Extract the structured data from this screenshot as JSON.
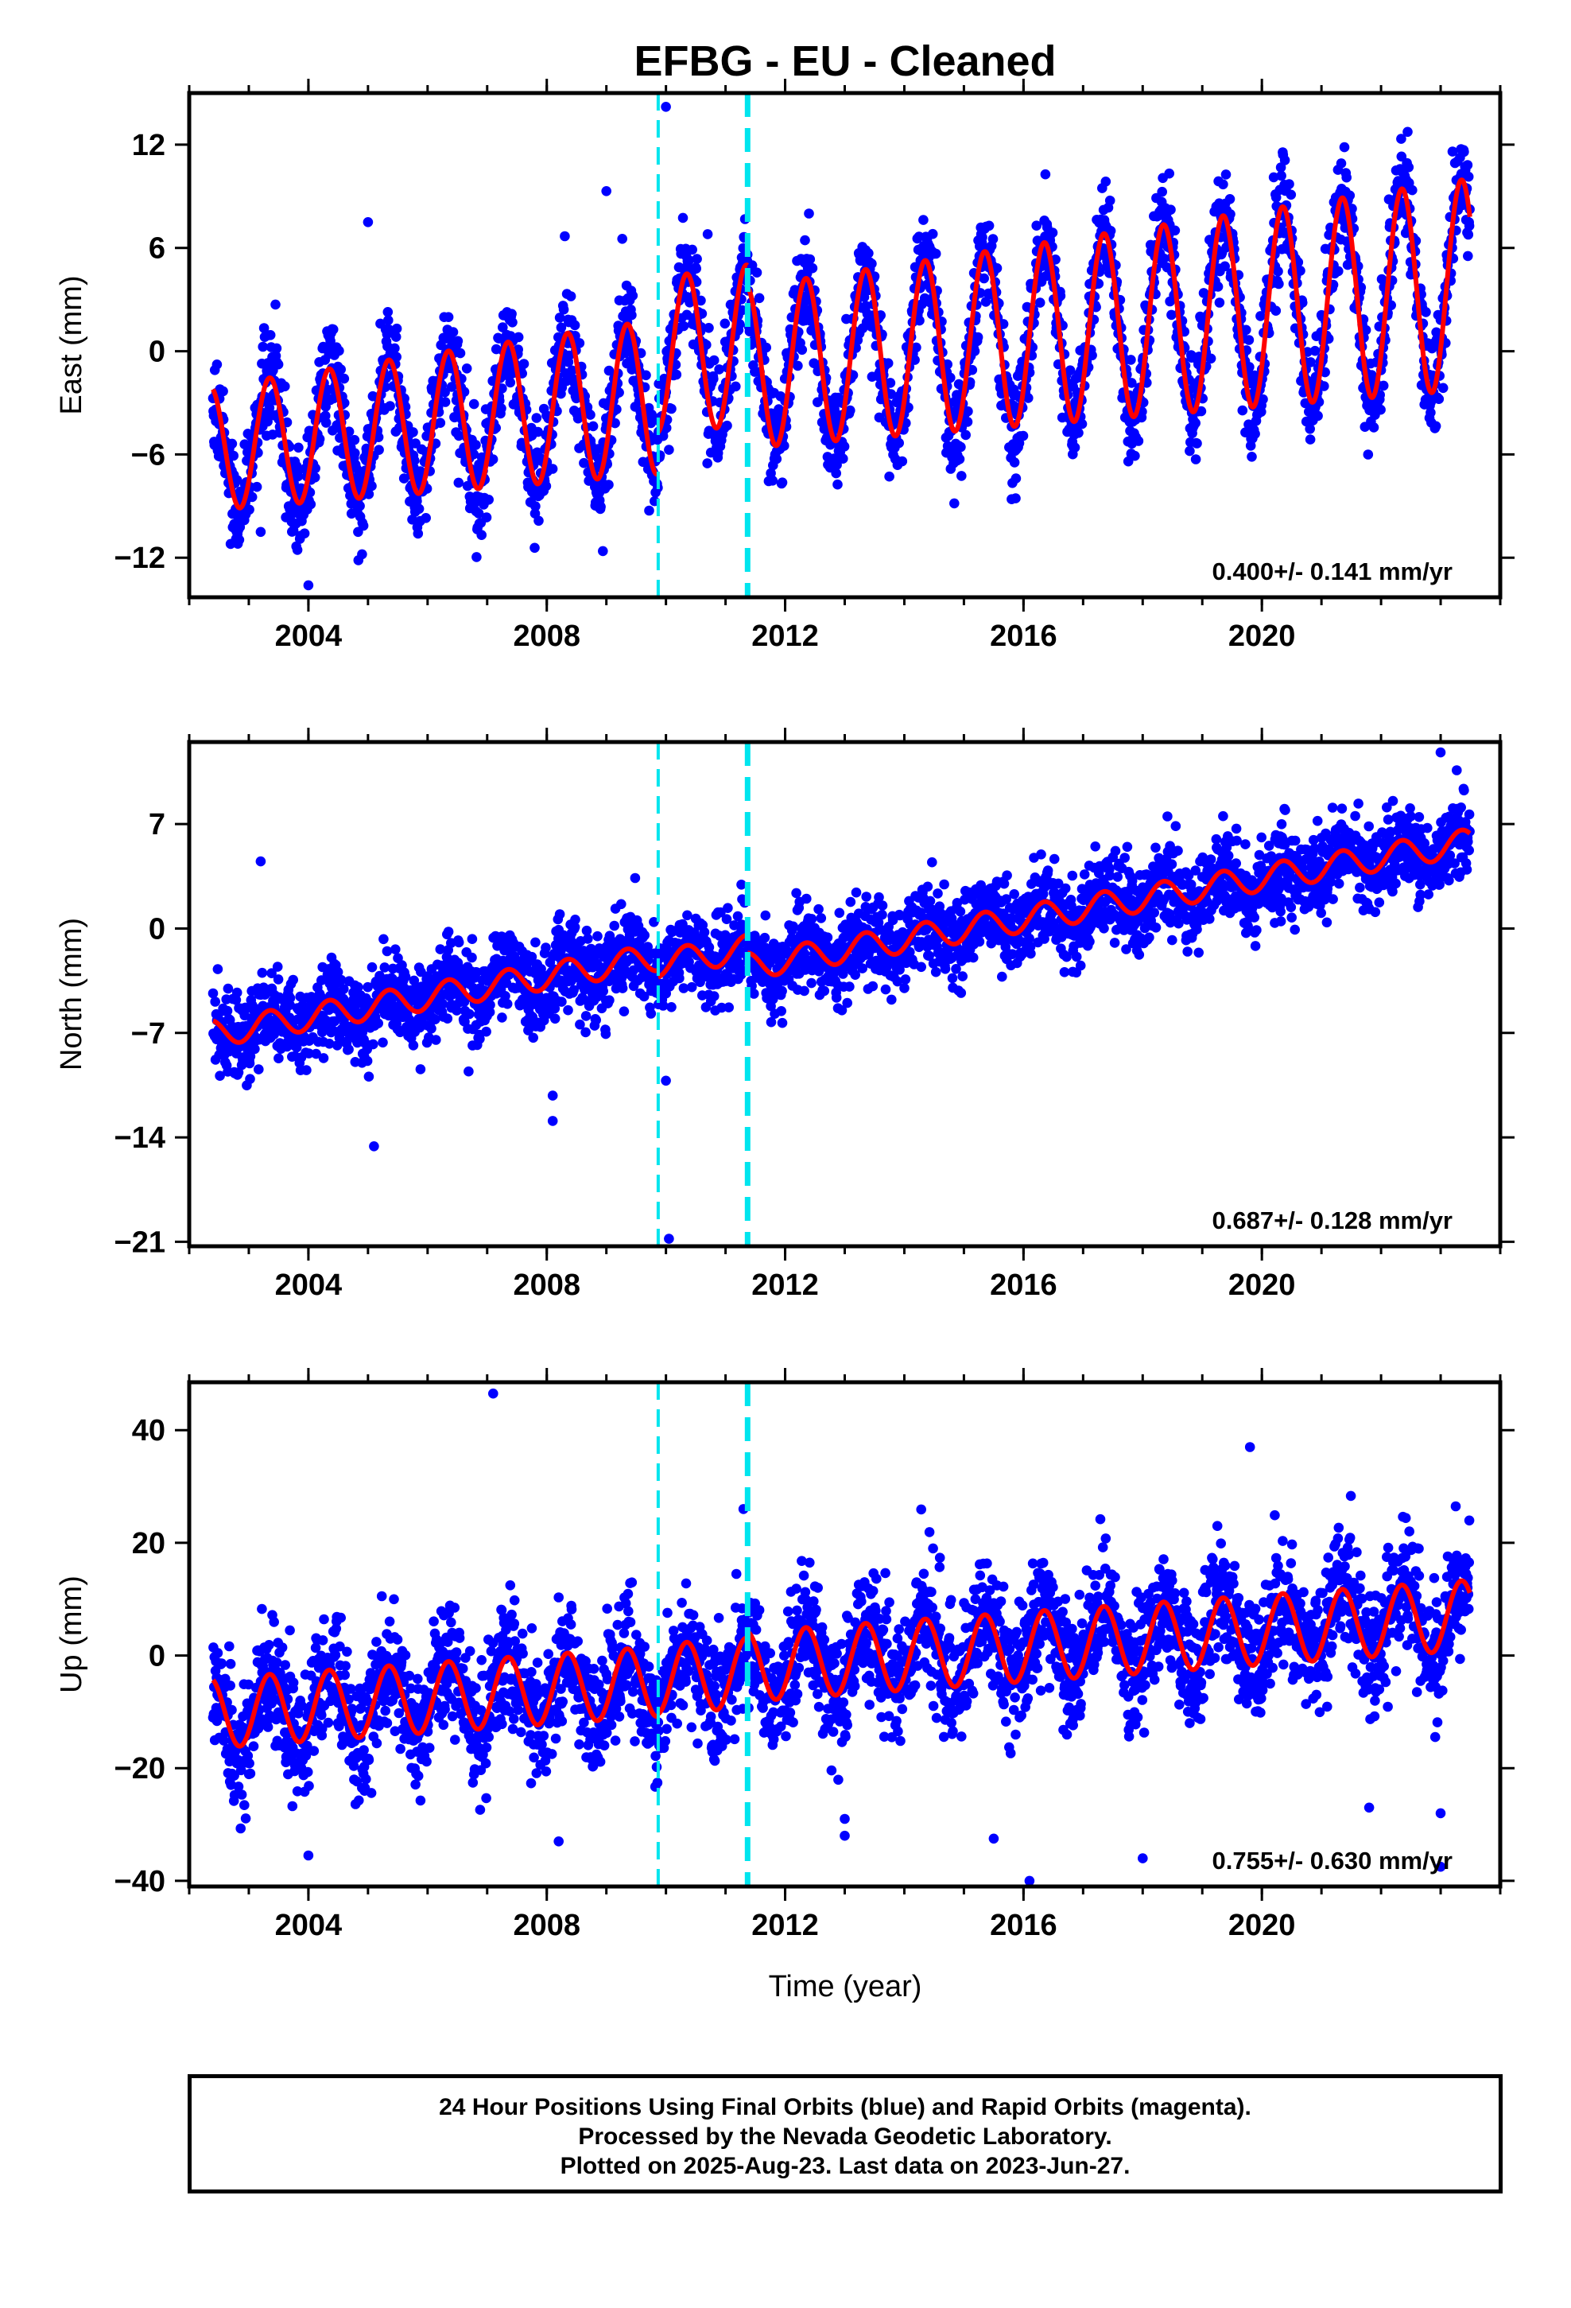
{
  "title": "EFBG  - EU - Cleaned",
  "xlabel": "Time (year)",
  "footer": {
    "line1": "24 Hour Positions Using Final Orbits (blue) and Rapid Orbits (magenta).",
    "line2": "Processed by the Nevada Geodetic Laboratory.",
    "line3": "Plotted on 2025-Aug-23. Last data on 2023-Jun-27."
  },
  "colors": {
    "points": "#0000ff",
    "model": "#ff0000",
    "breaks": "#00e5ee",
    "frame": "#000000"
  },
  "chart_data": [
    {
      "type": "scatter",
      "panel": "East",
      "ylabel": "East (mm)",
      "ylim": [
        -14.3,
        15
      ],
      "yticks": [
        12,
        6,
        0,
        -6,
        -12
      ],
      "xlim": [
        2002.0,
        2024.0
      ],
      "xticks": [
        2004,
        2008,
        2012,
        2016,
        2020
      ],
      "rate_label": "0.400+/- 0.141 mm/yr",
      "breaks": [
        2009.87,
        2011.37
      ],
      "data_range": [
        2002.4,
        2023.49
      ],
      "model": {
        "rate": 0.4,
        "amplitude": 3.6,
        "amplitude_growth": 0.12,
        "center_year": 2012.0,
        "noise": 1.5,
        "segments": [
          {
            "start": 2002.4,
            "end": 2009.87,
            "offset": -1.8
          },
          {
            "start": 2009.87,
            "end": 2011.37,
            "offset": 0.6
          },
          {
            "start": 2011.37,
            "end": 2023.49,
            "offset": -0.7
          }
        ]
      },
      "outliers": [
        [
          2003.2,
          -10.5
        ],
        [
          2004.0,
          -13.6
        ],
        [
          2004.9,
          -11.8
        ],
        [
          2005.0,
          7.5
        ],
        [
          2009.0,
          9.3
        ],
        [
          2010.0,
          14.2
        ],
        [
          2015.8,
          -8.6
        ],
        [
          2010.7,
          6.8
        ],
        [
          2012.4,
          8.0
        ],
        [
          2023.2,
          11.6
        ]
      ]
    },
    {
      "type": "scatter",
      "panel": "North",
      "ylabel": "North (mm)",
      "ylim": [
        -21.3,
        12.5
      ],
      "yticks": [
        7,
        0,
        -7,
        -14,
        -21
      ],
      "xlim": [
        2002.0,
        2024.0
      ],
      "xticks": [
        2004,
        2008,
        2012,
        2016,
        2020
      ],
      "rate_label": "0.687+/- 0.128 mm/yr",
      "breaks": [
        2009.87,
        2011.37
      ],
      "data_range": [
        2002.4,
        2023.49
      ],
      "model": {
        "rate": 0.687,
        "amplitude": 0.9,
        "amplitude_growth": 0.0,
        "center_year": 2012.0,
        "noise": 1.4,
        "segments": [
          {
            "start": 2002.4,
            "end": 2009.87,
            "offset": -0.45
          },
          {
            "start": 2009.87,
            "end": 2011.37,
            "offset": -0.9
          },
          {
            "start": 2011.37,
            "end": 2023.49,
            "offset": -2.1
          }
        ]
      },
      "outliers": [
        [
          2003.2,
          4.5
        ],
        [
          2005.1,
          -14.6
        ],
        [
          2008.1,
          -11.2
        ],
        [
          2008.1,
          -12.9
        ],
        [
          2010.0,
          -10.2
        ],
        [
          2010.05,
          -20.8
        ],
        [
          2003.5,
          -8.7
        ],
        [
          2004.9,
          -9.0
        ],
        [
          2023.0,
          11.8
        ]
      ]
    },
    {
      "type": "scatter",
      "panel": "Up",
      "ylabel": "Up (mm)",
      "ylim": [
        -41,
        48.5
      ],
      "yticks": [
        40,
        20,
        0,
        -20,
        -40
      ],
      "xlim": [
        2002.0,
        2024.0
      ],
      "xticks": [
        2004,
        2008,
        2012,
        2016,
        2020
      ],
      "rate_label": "0.755+/- 0.630 mm/yr",
      "breaks": [
        2009.87,
        2011.37
      ],
      "data_range": [
        2002.4,
        2023.49
      ],
      "model": {
        "rate": 0.755,
        "amplitude": 6.2,
        "amplitude_growth": 0.0,
        "center_year": 2012.0,
        "noise": 5.5,
        "segments": [
          {
            "start": 2002.4,
            "end": 2009.87,
            "offset": -3.0
          },
          {
            "start": 2009.87,
            "end": 2011.37,
            "offset": -2.6
          },
          {
            "start": 2011.37,
            "end": 2023.49,
            "offset": -1.5
          }
        ]
      },
      "outliers": [
        [
          2007.1,
          46.5
        ],
        [
          2004.0,
          -35.5
        ],
        [
          2008.2,
          -33.0
        ],
        [
          2011.3,
          26.0
        ],
        [
          2013.0,
          -32.0
        ],
        [
          2013.0,
          -29.0
        ],
        [
          2015.5,
          -32.5
        ],
        [
          2016.1,
          -40.0
        ],
        [
          2018.0,
          -36.0
        ],
        [
          2019.8,
          37.0
        ],
        [
          2021.8,
          -27.0
        ],
        [
          2023.0,
          -37.5
        ],
        [
          2023.0,
          -28.0
        ]
      ]
    }
  ]
}
